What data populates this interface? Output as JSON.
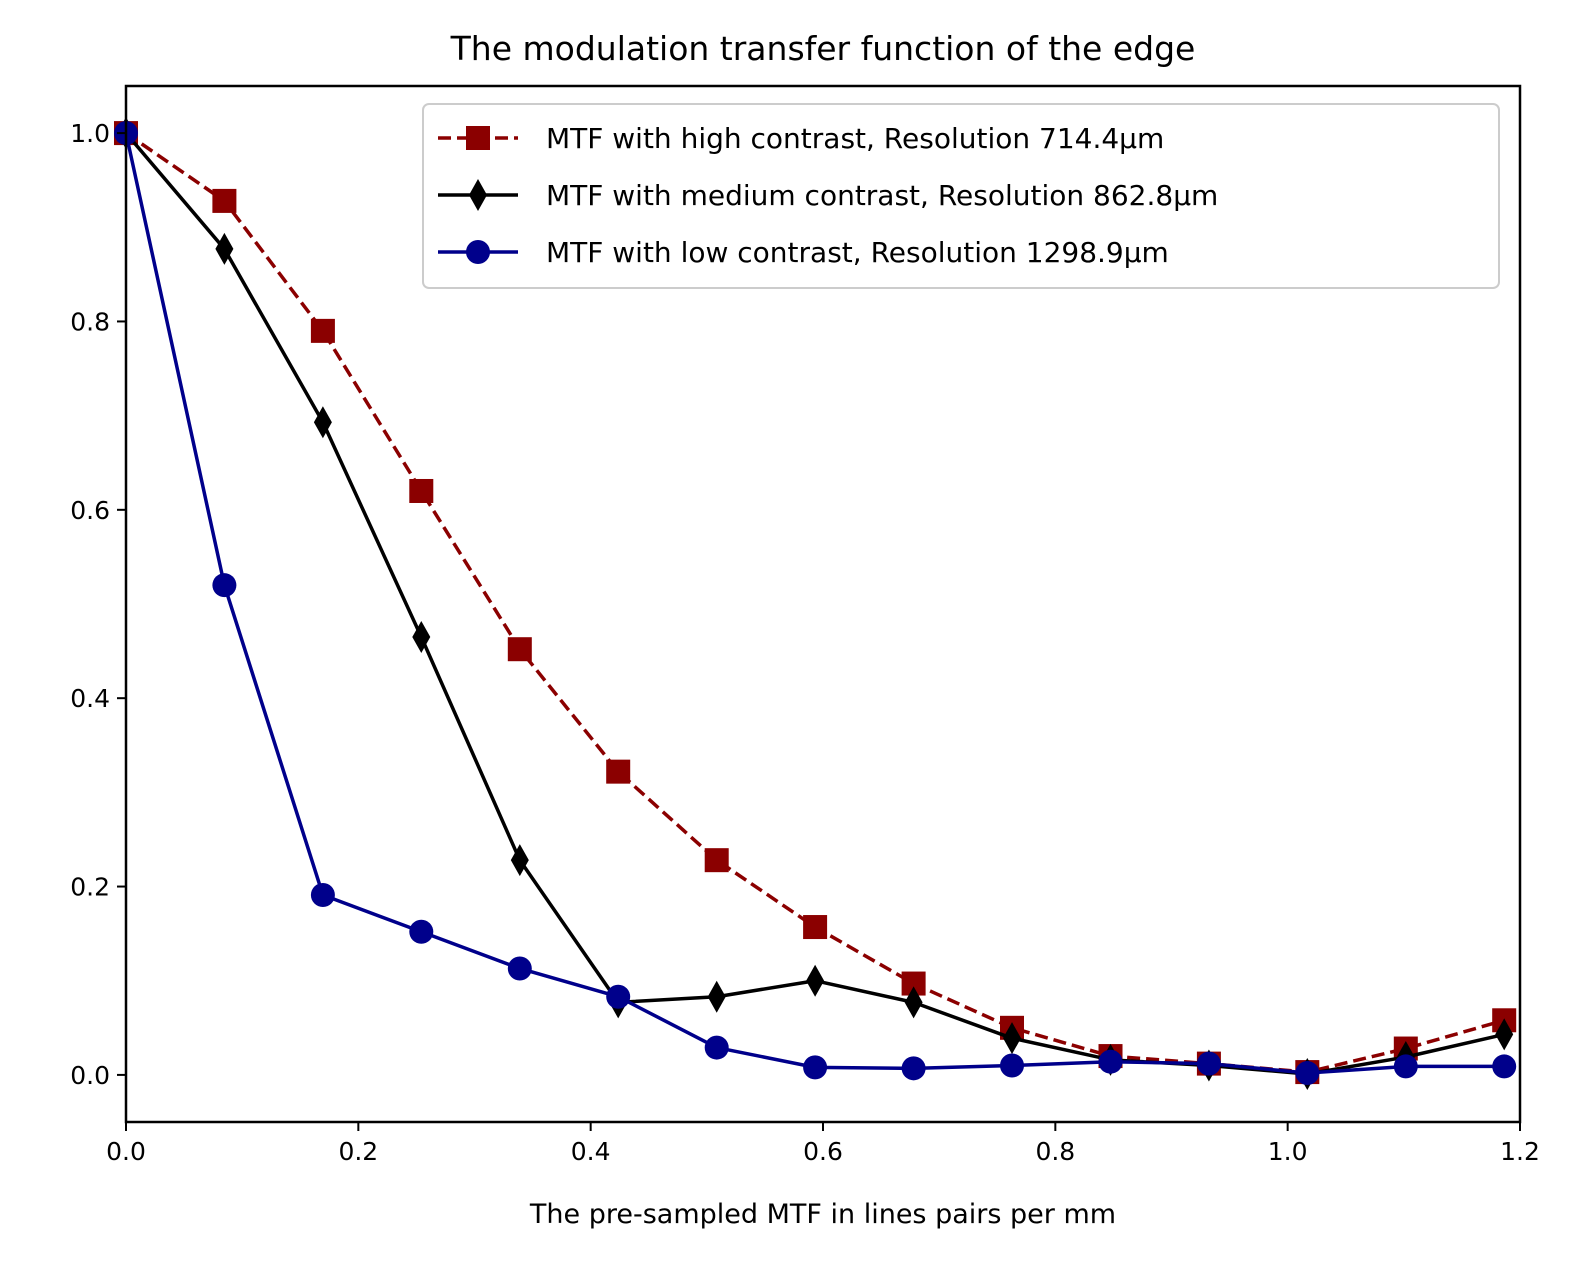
{
  "chart_data": {
    "type": "line",
    "title": "The modulation transfer function of the edge",
    "xlabel": "The pre-sampled MTF in lines pairs per mm",
    "ylabel": "",
    "xlim": [
      0.0,
      1.2
    ],
    "ylim": [
      -0.05,
      1.05
    ],
    "xticks": [
      0.0,
      0.2,
      0.4,
      0.6,
      0.8,
      1.0,
      1.2
    ],
    "xtick_labels": [
      "0.0",
      "0.2",
      "0.4",
      "0.6",
      "0.8",
      "1.0",
      "1.2"
    ],
    "yticks": [
      0.0,
      0.2,
      0.4,
      0.6,
      0.8,
      1.0
    ],
    "ytick_labels": [
      "0.0",
      "0.2",
      "0.4",
      "0.6",
      "0.8",
      "1.0"
    ],
    "grid": false,
    "legend_position": "top-right",
    "x": [
      0.0,
      0.0847,
      0.1695,
      0.2542,
      0.339,
      0.4237,
      0.5085,
      0.5932,
      0.678,
      0.7627,
      0.8475,
      0.9322,
      1.0169,
      1.1017,
      1.1864
    ],
    "series": [
      {
        "name": "MTF with high contrast, Resolution 714.4µm",
        "color": "#8b0000",
        "marker": "square",
        "linestyle": "dashed",
        "values": [
          1.0,
          0.928,
          0.79,
          0.62,
          0.452,
          0.322,
          0.228,
          0.157,
          0.097,
          0.05,
          0.02,
          0.012,
          0.003,
          0.028,
          0.058
        ]
      },
      {
        "name": "MTF with medium contrast, Resolution 862.8µm",
        "color": "#000000",
        "marker": "thin_diamond",
        "linestyle": "solid",
        "values": [
          1.0,
          0.877,
          0.693,
          0.465,
          0.228,
          0.077,
          0.083,
          0.1,
          0.077,
          0.039,
          0.016,
          0.01,
          0.001,
          0.019,
          0.043
        ]
      },
      {
        "name": "MTF with low contrast, Resolution 1298.9µm",
        "color": "#00008b",
        "marker": "circle",
        "linestyle": "solid",
        "values": [
          1.0,
          0.52,
          0.191,
          0.152,
          0.113,
          0.083,
          0.029,
          0.008,
          0.007,
          0.01,
          0.014,
          0.012,
          0.002,
          0.009,
          0.009
        ]
      }
    ]
  }
}
